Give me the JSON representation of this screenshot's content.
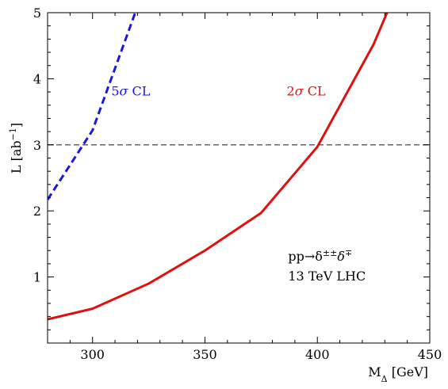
{
  "chart_data": {
    "type": "line",
    "xlabel": "M",
    "xlabel_sub": "Δ",
    "xlabel_unit": "[GeV]",
    "ylabel": "L [ab",
    "ylabel_sup": "−1",
    "ylabel_close": "]",
    "xlim": [
      280,
      450
    ],
    "ylim": [
      0,
      5
    ],
    "xticks": [
      300,
      350,
      400,
      450
    ],
    "yticks": [
      1,
      2,
      3,
      4,
      5
    ],
    "reference_line": {
      "y": 3,
      "style": "dashed",
      "color": "#555555"
    },
    "series": [
      {
        "label": "5σ CL",
        "label_prefix": "5",
        "label_sym": "σ",
        "label_suffix": " CL",
        "color": "#1a1ad6",
        "style": "dashed",
        "label_at": [
          317,
          3.75
        ],
        "x": [
          280,
          300,
          319
        ],
        "y": [
          2.17,
          3.22,
          5.0
        ]
      },
      {
        "label": "2σ CL",
        "label_prefix": "2",
        "label_sym": "σ",
        "label_suffix": " CL",
        "color": "#e01010",
        "style": "solid",
        "label_at": [
          395,
          3.75
        ],
        "x": [
          280,
          300,
          325,
          350,
          375,
          400,
          425,
          431
        ],
        "y": [
          0.36,
          0.52,
          0.9,
          1.4,
          1.97,
          2.97,
          4.52,
          5.0
        ]
      }
    ],
    "annotations": [
      {
        "text": "pp→δ",
        "sup": "±±",
        "text2": "δ",
        "sup2": "∓",
        "x": 387,
        "y": 1.25
      },
      {
        "text": "13 TeV LHC",
        "x": 387,
        "y": 0.95
      }
    ]
  }
}
